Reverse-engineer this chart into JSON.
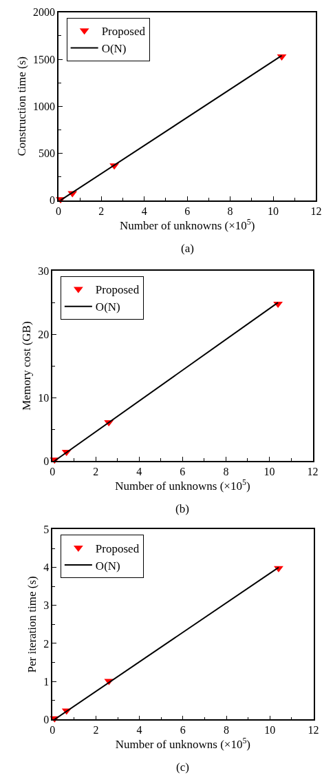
{
  "chart_data": [
    {
      "type": "scatter",
      "xlabel": "Number of unknowns (×10$^{5}$)",
      "ylabel": "Construction time (s)",
      "annotations": [
        "(a)"
      ],
      "xlim": [
        0,
        12
      ],
      "ylim": [
        0,
        2000
      ],
      "xticks": [
        0,
        {
          "value": 1,
          "label": null
        },
        2,
        {
          "value": 3,
          "label": null
        },
        4,
        {
          "value": 5,
          "label": null
        },
        6,
        {
          "value": 7,
          "label": null
        },
        8,
        {
          "value": 9,
          "label": null
        },
        10,
        {
          "value": 11,
          "label": null
        },
        12
      ],
      "yticks": [
        0,
        {
          "value": 250,
          "label": null
        },
        500,
        {
          "value": 750,
          "label": null
        },
        1000,
        {
          "value": 1250,
          "label": null
        },
        1500,
        {
          "value": 1750,
          "label": null
        },
        2000
      ],
      "legend": "top left",
      "series": [
        {
          "name": "Proposed",
          "marker": "triangle",
          "color": "#ff0000",
          "x": [
            0.1,
            0.65,
            2.6,
            10.4
          ],
          "values": [
            10,
            75,
            370,
            1530
          ]
        },
        {
          "name": "O(N)",
          "type": "line",
          "marker": "none",
          "color": "#000000",
          "x": [
            0.1,
            10.4
          ],
          "values": [
            0,
            1540
          ]
        }
      ]
    },
    {
      "type": "scatter",
      "xlabel": "Number of unknowns (×10$^{5}$)",
      "ylabel": "Memory cost (GB)",
      "annotations": [
        "(b)"
      ],
      "xlim": [
        0,
        12
      ],
      "ylim": [
        0,
        30
      ],
      "xticks": [
        0,
        {
          "value": 1,
          "label": null
        },
        2,
        {
          "value": 3,
          "label": null
        },
        4,
        {
          "value": 5,
          "label": null
        },
        6,
        {
          "value": 7,
          "label": null
        },
        8,
        {
          "value": 9,
          "label": null
        },
        10,
        {
          "value": 11,
          "label": null
        },
        12
      ],
      "yticks": [
        0,
        {
          "value": 5,
          "label": null
        },
        10,
        {
          "value": 15,
          "label": null
        },
        20,
        {
          "value": 25,
          "label": null
        },
        30
      ],
      "legend": "top left",
      "series": [
        {
          "name": "Proposed",
          "marker": "triangle",
          "color": "#ff0000",
          "x": [
            0.1,
            0.65,
            2.6,
            10.4
          ],
          "values": [
            0.2,
            1.4,
            6.1,
            24.8
          ]
        },
        {
          "name": "O(N)",
          "type": "line",
          "marker": "none",
          "color": "#000000",
          "x": [
            0.1,
            10.4
          ],
          "values": [
            0,
            25
          ]
        }
      ]
    },
    {
      "type": "scatter",
      "xlabel": "Number of unknowns (×10$^{5}$)",
      "ylabel": "Per iteration time (s)",
      "annotations": [
        "(c)"
      ],
      "xlim": [
        0,
        12
      ],
      "ylim": [
        0,
        5
      ],
      "xticks": [
        0,
        {
          "value": 1,
          "label": null
        },
        2,
        {
          "value": 3,
          "label": null
        },
        4,
        {
          "value": 5,
          "label": null
        },
        6,
        {
          "value": 7,
          "label": null
        },
        8,
        {
          "value": 9,
          "label": null
        },
        10,
        {
          "value": 11,
          "label": null
        },
        12
      ],
      "yticks": [
        0,
        {
          "value": 0.5,
          "label": null
        },
        1,
        {
          "value": 1.5,
          "label": null
        },
        2,
        {
          "value": 2.5,
          "label": null
        },
        3,
        {
          "value": 3.5,
          "label": null
        },
        4,
        {
          "value": 4.5,
          "label": null
        },
        5
      ],
      "legend": "top left",
      "series": [
        {
          "name": "Proposed",
          "marker": "triangle",
          "color": "#ff0000",
          "x": [
            0.1,
            0.65,
            2.6,
            10.4
          ],
          "values": [
            0.03,
            0.23,
            1.01,
            3.98
          ]
        },
        {
          "name": "O(N)",
          "type": "line",
          "marker": "none",
          "color": "#000000",
          "x": [
            0.1,
            10.4
          ],
          "values": [
            0,
            4.0
          ]
        }
      ]
    }
  ]
}
